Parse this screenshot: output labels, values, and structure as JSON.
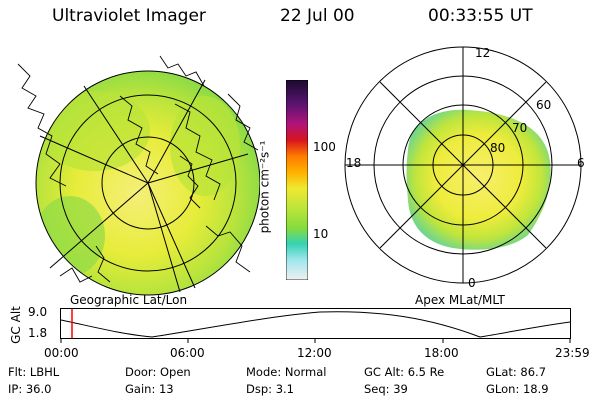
{
  "header": {
    "instrument": "Ultraviolet Imager",
    "date": "22 Jul 00",
    "time": "00:33:55 UT"
  },
  "colorbar": {
    "unit_label": "photon cm⁻²s⁻¹",
    "ticks": [
      "100",
      "10"
    ],
    "colors_top_to_bottom": [
      "#1a0b2e",
      "#5a1470",
      "#b0147a",
      "#d8141e",
      "#ff7a00",
      "#ffb000",
      "#f0e830",
      "#bde53a",
      "#86dc3c",
      "#36d2b4",
      "#9fe6ec",
      "#f0f0f0"
    ]
  },
  "left_map": {
    "label": "Geographic Lat/Lon"
  },
  "right_polar": {
    "label": "Apex MLat/MLT",
    "mlt_labels": {
      "top": "12",
      "left": "18",
      "right": "6",
      "bottom": "0"
    },
    "lat_labels": [
      "60",
      "70",
      "80"
    ]
  },
  "altitude_plot": {
    "ylabel": "GC Alt",
    "yticks": [
      "9.0",
      "1.8"
    ],
    "xticks": [
      "00:00",
      "06:00",
      "12:00",
      "18:00",
      "23:59"
    ],
    "marker_time": "00:33:55",
    "marker_color": "#ff0000"
  },
  "info": {
    "flt": {
      "label": "Flt:",
      "value": "LBHL"
    },
    "ip": {
      "label": "IP:",
      "value": "36.0"
    },
    "door": {
      "label": "Door:",
      "value": "Open"
    },
    "gain": {
      "label": "Gain:",
      "value": "13"
    },
    "mode": {
      "label": "Mode:",
      "value": "Normal"
    },
    "dsp": {
      "label": "Dsp:",
      "value": "3.1"
    },
    "gc_alt": {
      "label": "GC Alt:",
      "value": "6.5 Re"
    },
    "seq": {
      "label": "Seq:",
      "value": "39"
    },
    "glat": {
      "label": "GLat:",
      "value": "86.7"
    },
    "glon": {
      "label": "GLon:",
      "value": "18.9"
    }
  }
}
